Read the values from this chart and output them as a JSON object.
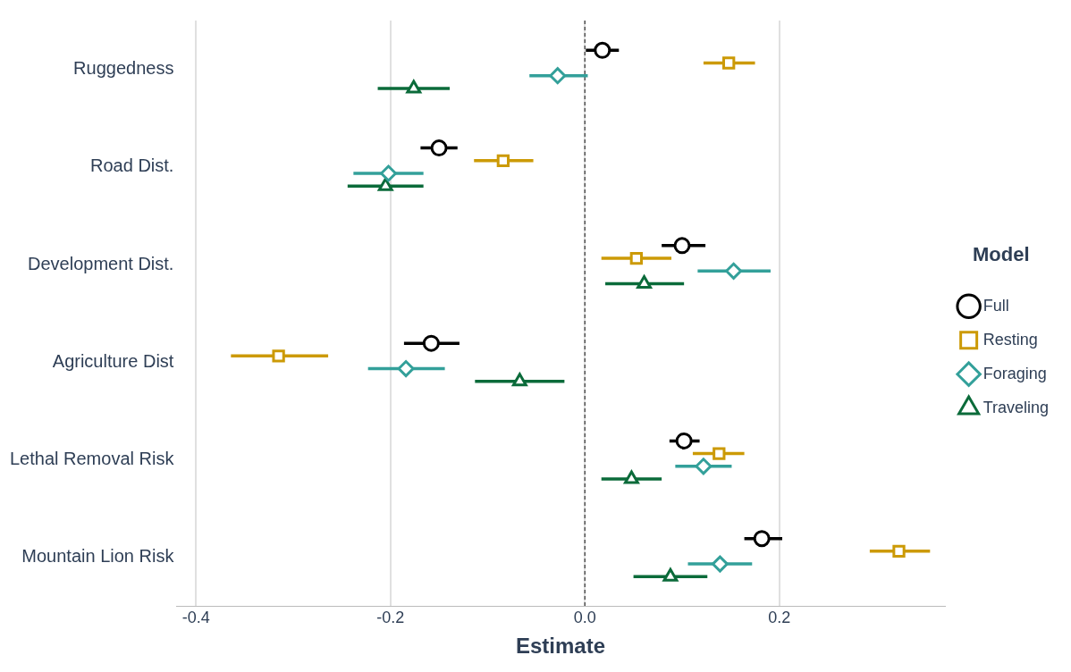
{
  "chart_data": {
    "type": "scatter",
    "orientation": "horizontal",
    "xlabel": "Estimate",
    "legend_title": "Model",
    "legend": "right",
    "grid": "x",
    "categories": [
      "Ruggedness",
      "Road Dist.",
      "Development Dist.",
      "Agriculture Dist",
      "Lethal Removal Risk",
      "Mountain Lion Risk"
    ],
    "xlim": [
      -0.42,
      0.37
    ],
    "xticks": [
      -0.4,
      -0.2,
      {
        "value": 0,
        "label": "0.0"
      },
      0.2
    ],
    "ref_lines": [
      {
        "axis": "x",
        "value": 0,
        "line_style": "dashed",
        "color": "#333333"
      }
    ],
    "series": [
      {
        "name": "Full",
        "color": "#000000",
        "marker": "circle",
        "values": [
          0.018,
          -0.15,
          0.1,
          -0.158,
          0.102,
          0.182
        ],
        "errors": [
          [
            0.001,
            0.035
          ],
          [
            -0.169,
            -0.131
          ],
          [
            0.079,
            0.124
          ],
          [
            -0.186,
            -0.129
          ],
          [
            0.087,
            0.118
          ],
          [
            0.164,
            0.203
          ]
        ]
      },
      {
        "name": "Resting",
        "color": "#cc9a06",
        "marker": "square",
        "values": [
          0.148,
          -0.084,
          0.053,
          -0.315,
          0.138,
          0.323
        ],
        "errors": [
          [
            0.122,
            0.175
          ],
          [
            -0.114,
            -0.053
          ],
          [
            0.017,
            0.089
          ],
          [
            -0.364,
            -0.264
          ],
          [
            0.111,
            0.164
          ],
          [
            0.293,
            0.355
          ]
        ]
      },
      {
        "name": "Foraging",
        "color": "#33a09a",
        "marker": "diamond",
        "values": [
          -0.028,
          -0.202,
          0.153,
          -0.184,
          0.122,
          0.139
        ],
        "errors": [
          [
            -0.057,
            0.003
          ],
          [
            -0.238,
            -0.166
          ],
          [
            0.116,
            0.191
          ],
          [
            -0.223,
            -0.144
          ],
          [
            0.093,
            0.151
          ],
          [
            0.106,
            0.172
          ]
        ]
      },
      {
        "name": "Traveling",
        "color": "#0b6b3a",
        "marker": "triangle",
        "values": [
          -0.176,
          -0.205,
          0.061,
          -0.067,
          0.048,
          0.088
        ],
        "errors": [
          [
            -0.213,
            -0.139
          ],
          [
            -0.244,
            -0.166
          ],
          [
            0.021,
            0.102
          ],
          [
            -0.113,
            -0.021
          ],
          [
            0.017,
            0.079
          ],
          [
            0.05,
            0.126
          ]
        ]
      }
    ]
  }
}
